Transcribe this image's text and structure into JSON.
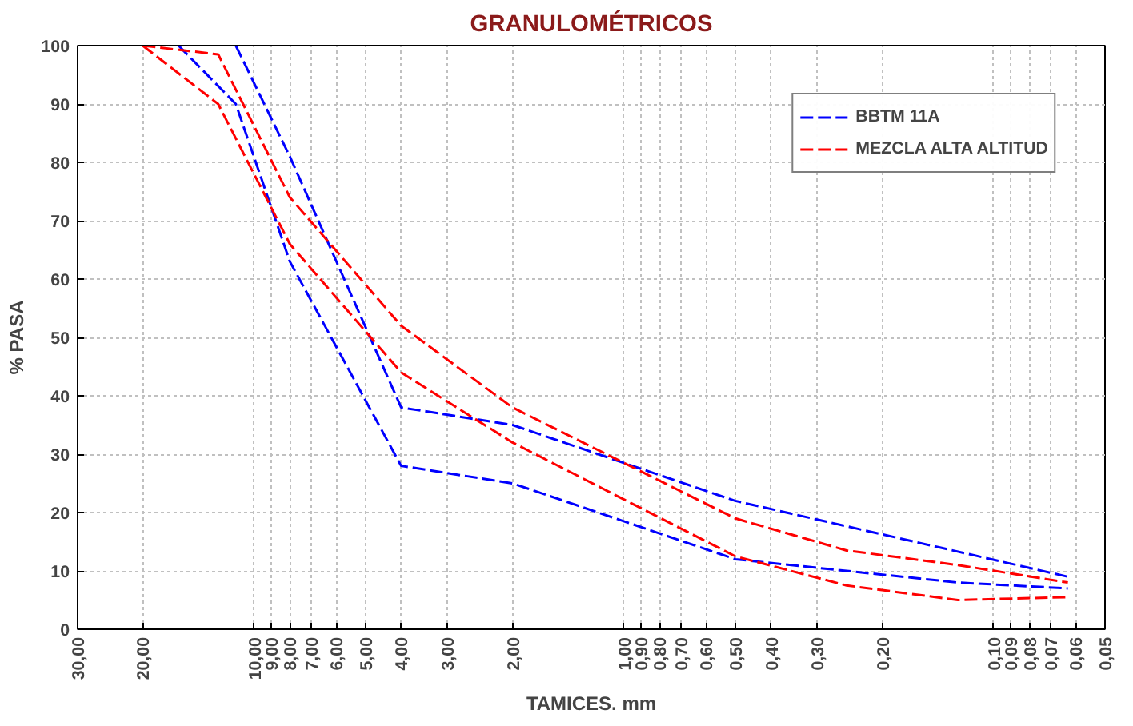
{
  "chart_data": {
    "type": "line",
    "title": "GRANULOMÉTRICOS",
    "xlabel": "TAMICES. mm",
    "ylabel": "% PASA",
    "log": "x",
    "line_style": "dashed",
    "marker": "none",
    "grid": true,
    "legend": "top right",
    "xlim": [
      30,
      0.05
    ],
    "ylim": [
      0,
      100
    ],
    "xticks": [
      {
        "value": 30,
        "label": "30,00"
      },
      {
        "value": 20,
        "label": "20,00"
      },
      {
        "value": 10,
        "label": "10,00"
      },
      {
        "value": 9,
        "label": "9,00"
      },
      {
        "value": 8,
        "label": "8,00"
      },
      {
        "value": 7,
        "label": "7,00"
      },
      {
        "value": 6,
        "label": "6,00"
      },
      {
        "value": 5,
        "label": "5,00"
      },
      {
        "value": 4,
        "label": "4,00"
      },
      {
        "value": 3,
        "label": "3,00"
      },
      {
        "value": 2,
        "label": "2,00"
      },
      {
        "value": 1,
        "label": "1,00"
      },
      {
        "value": 0.9,
        "label": "0,90"
      },
      {
        "value": 0.8,
        "label": "0,80"
      },
      {
        "value": 0.7,
        "label": "0,70"
      },
      {
        "value": 0.6,
        "label": "0,60"
      },
      {
        "value": 0.5,
        "label": "0,50"
      },
      {
        "value": 0.4,
        "label": "0,40"
      },
      {
        "value": 0.3,
        "label": "0,30"
      },
      {
        "value": 0.2,
        "label": "0,20"
      },
      {
        "value": 0.1,
        "label": "0,10"
      },
      {
        "value": 0.09,
        "label": "0,09"
      },
      {
        "value": 0.08,
        "label": "0,08"
      },
      {
        "value": 0.07,
        "label": "0,07"
      },
      {
        "value": 0.06,
        "label": "0,06"
      },
      {
        "value": 0.05,
        "label": "0,05"
      }
    ],
    "yticks": [
      0,
      10,
      20,
      30,
      40,
      50,
      60,
      70,
      80,
      90,
      100
    ],
    "series": [
      {
        "name": "BBTM 11A",
        "color": "#0000ff",
        "x": [
          11.2,
          8,
          4,
          2,
          0.5,
          0.063
        ],
        "values": [
          100,
          81,
          38,
          35,
          22,
          9
        ]
      },
      {
        "color": "#0000ff",
        "x": [
          16,
          11.2,
          8,
          4,
          2,
          0.5,
          0.25,
          0.125,
          0.063
        ],
        "values": [
          100,
          90,
          63,
          28,
          25,
          12,
          10,
          8,
          7
        ]
      },
      {
        "name": "MEZCLA ALTA ALTITUD",
        "color": "#ff0000",
        "x": [
          20,
          12.5,
          8,
          4,
          2,
          0.5,
          0.25,
          0.125,
          0.063
        ],
        "values": [
          100,
          98.5,
          74,
          52,
          38,
          19,
          13.5,
          11,
          8
        ]
      },
      {
        "color": "#ff0000",
        "x": [
          20,
          12.5,
          8,
          4,
          2,
          0.5,
          0.25,
          0.125,
          0.063
        ],
        "values": [
          100,
          90,
          66,
          44,
          32,
          12.5,
          7.5,
          5,
          5.5
        ]
      }
    ]
  }
}
